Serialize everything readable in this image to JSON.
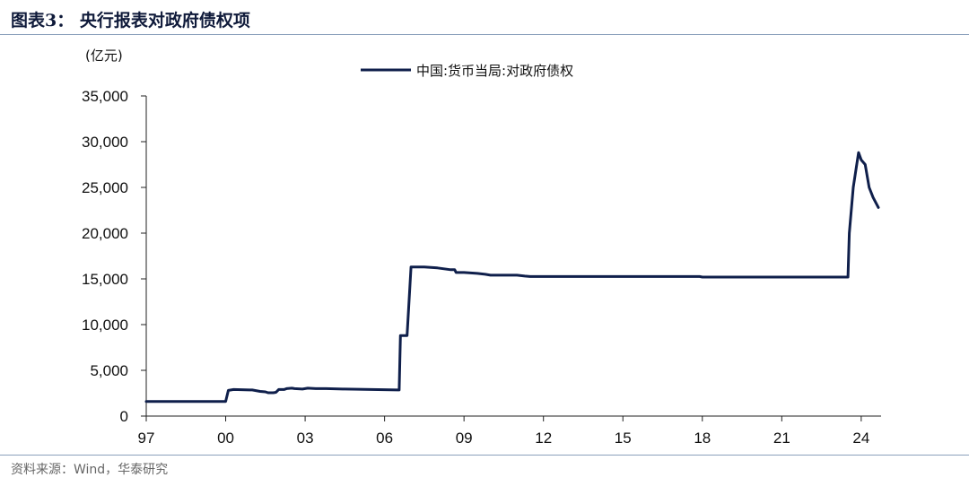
{
  "figure": {
    "title": "图表3：   央行报表对政府债权项",
    "source": "资料来源：Wind，华泰研究"
  },
  "colors": {
    "series": "#0f1f4b",
    "rule": "#8aa0bb"
  },
  "chart_data": {
    "type": "line",
    "ylabel": "(亿元)",
    "ylim": [
      0,
      35000
    ],
    "yticks": [
      0,
      5000,
      10000,
      15000,
      20000,
      25000,
      30000,
      35000
    ],
    "ytick_labels": [
      "0",
      "5,000",
      "10,000",
      "15,000",
      "20,000",
      "25,000",
      "30,000",
      "35,000"
    ],
    "xlim": [
      1997,
      2024.75
    ],
    "xticks": [
      1997,
      2000,
      2003,
      2006,
      2009,
      2012,
      2015,
      2018,
      2021,
      2024
    ],
    "xtick_labels": [
      "97",
      "00",
      "03",
      "06",
      "09",
      "12",
      "15",
      "18",
      "21",
      "24"
    ],
    "grid": false,
    "legend_position": "top-center",
    "series": [
      {
        "name": "中国:货币当局:对政府债权",
        "x": [
          1997.0,
          1999.9,
          2000.0,
          2000.1,
          2000.3,
          2000.9,
          2001.0,
          2001.3,
          2001.5,
          2001.6,
          2001.8,
          2001.9,
          2002.0,
          2002.2,
          2002.3,
          2002.5,
          2002.6,
          2002.9,
          2003.0,
          2003.1,
          2003.4,
          2003.8,
          2004.5,
          2006.5,
          2006.55,
          2006.6,
          2006.8,
          2006.85,
          2007.0,
          2007.1,
          2007.5,
          2008.0,
          2008.5,
          2008.65,
          2008.7,
          2009.0,
          2009.5,
          2009.8,
          2010.0,
          2011.0,
          2011.3,
          2011.5,
          2015.5,
          2017.9,
          2018.0,
          2023.5,
          2023.55,
          2023.7,
          2023.9,
          2024.0,
          2024.15,
          2024.3,
          2024.45,
          2024.65
        ],
        "values": [
          1600,
          1600,
          1600,
          2800,
          2900,
          2850,
          2850,
          2700,
          2650,
          2550,
          2550,
          2600,
          2900,
          2900,
          3000,
          3050,
          3000,
          2950,
          3000,
          3050,
          3000,
          3000,
          2950,
          2850,
          2850,
          8800,
          8800,
          8800,
          16300,
          16300,
          16300,
          16200,
          16000,
          16000,
          15700,
          15700,
          15600,
          15500,
          15400,
          15400,
          15300,
          15250,
          15250,
          15250,
          15200,
          15200,
          20000,
          25000,
          28800,
          28000,
          27500,
          25000,
          23900,
          22800
        ]
      }
    ]
  }
}
